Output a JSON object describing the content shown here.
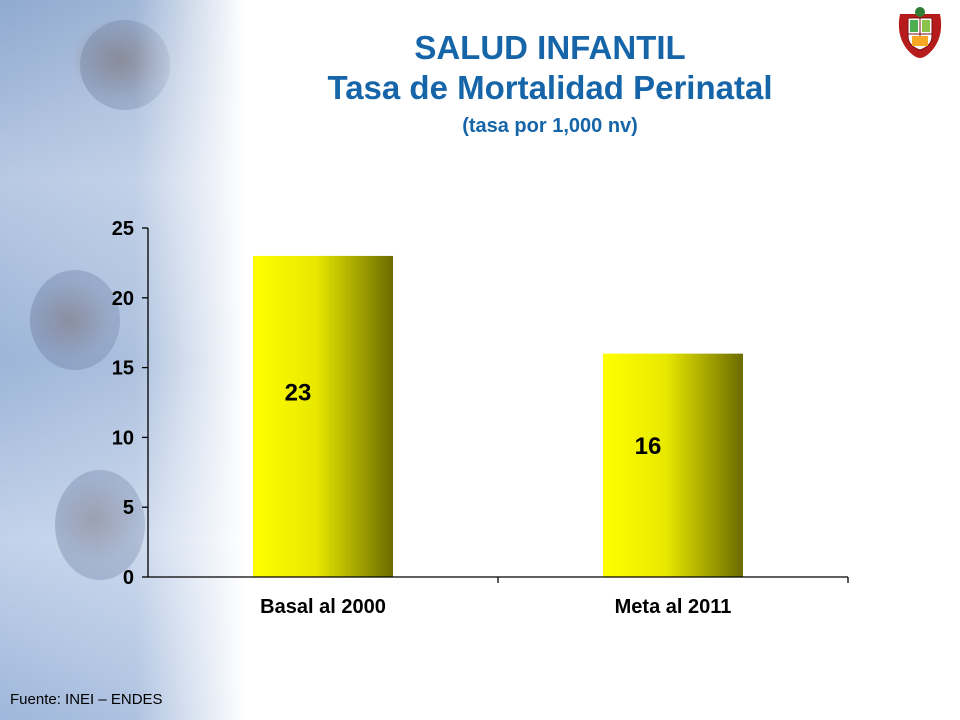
{
  "header": {
    "title_line1": "SALUD INFANTIL",
    "title_line2": "Tasa de Mortalidad Perinatal",
    "subtitle": "(tasa por 1,000 nv)"
  },
  "source": "Fuente: INEI – ENDES",
  "chart_data": {
    "type": "bar",
    "title": "",
    "xlabel": "",
    "ylabel": "",
    "categories": [
      "Basal al 2000",
      "Meta al 2011"
    ],
    "values": [
      23,
      16
    ],
    "data_labels": [
      "23",
      "16"
    ],
    "ylim": [
      0,
      25
    ],
    "yticks": [
      "0",
      "5",
      "10",
      "15",
      "20",
      "25"
    ],
    "grid": false,
    "legend": "none",
    "bar_color_light": "#ffff00",
    "bar_color_dark": "#6b6b00"
  },
  "colors": {
    "title": "#1565a8",
    "axis": "#000000"
  }
}
